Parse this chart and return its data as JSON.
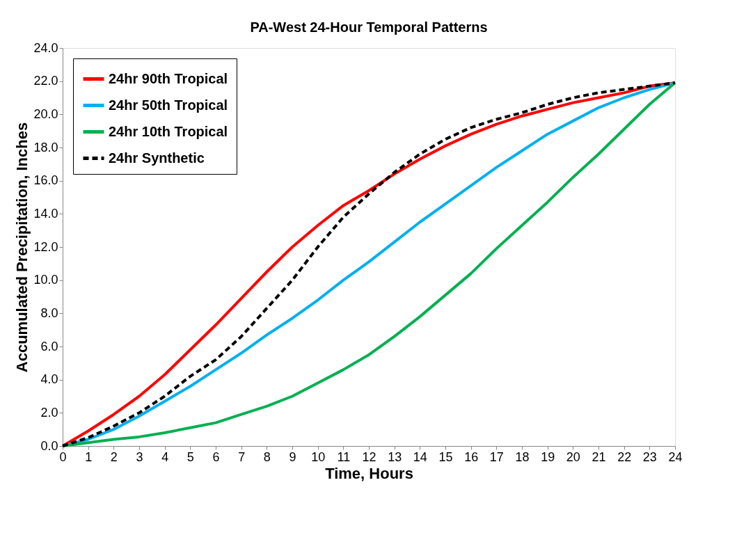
{
  "chart_data": {
    "type": "line",
    "title": "PA-West 24-Hour Temporal Patterns",
    "xlabel": "Time, Hours",
    "ylabel": "Accumulated Precipitation, Inches",
    "x": [
      0,
      1,
      2,
      3,
      4,
      5,
      6,
      7,
      8,
      9,
      10,
      11,
      12,
      13,
      14,
      15,
      16,
      17,
      18,
      19,
      20,
      21,
      22,
      23,
      24
    ],
    "series": [
      {
        "name": "24hr 90th Tropical",
        "color": "#ff0000",
        "line_style": "solid",
        "values": [
          0,
          0.9,
          1.9,
          3.0,
          4.3,
          5.8,
          7.3,
          8.9,
          10.5,
          12.0,
          13.3,
          14.5,
          15.4,
          16.4,
          17.3,
          18.1,
          18.8,
          19.4,
          19.9,
          20.3,
          20.7,
          21.0,
          21.3,
          21.7,
          21.9
        ]
      },
      {
        "name": "24hr 50th Tropical",
        "color": "#00b0f0",
        "line_style": "solid",
        "values": [
          0,
          0.4,
          1.0,
          1.8,
          2.7,
          3.6,
          4.6,
          5.6,
          6.7,
          7.7,
          8.8,
          10.0,
          11.1,
          12.3,
          13.5,
          14.6,
          15.7,
          16.8,
          17.8,
          18.8,
          19.6,
          20.4,
          21.0,
          21.5,
          21.9
        ]
      },
      {
        "name": "24hr 10th Tropical",
        "color": "#00b050",
        "line_style": "solid",
        "values": [
          0,
          0.2,
          0.4,
          0.55,
          0.8,
          1.1,
          1.4,
          1.9,
          2.4,
          3.0,
          3.8,
          4.6,
          5.5,
          6.6,
          7.8,
          9.1,
          10.4,
          11.9,
          13.3,
          14.7,
          16.2,
          17.6,
          19.1,
          20.6,
          21.9
        ]
      },
      {
        "name": "24hr Synthetic",
        "color": "#000000",
        "line_style": "dashed",
        "values": [
          0,
          0.5,
          1.2,
          2.0,
          3.0,
          4.2,
          5.2,
          6.6,
          8.3,
          10.0,
          12.0,
          13.8,
          15.2,
          16.5,
          17.6,
          18.5,
          19.2,
          19.7,
          20.1,
          20.6,
          21.0,
          21.3,
          21.5,
          21.7,
          21.9
        ]
      }
    ],
    "xlim": [
      0,
      24
    ],
    "xticks": [
      0,
      1,
      2,
      3,
      4,
      5,
      6,
      7,
      8,
      9,
      10,
      11,
      12,
      13,
      14,
      15,
      16,
      17,
      18,
      19,
      20,
      21,
      22,
      23,
      24
    ],
    "ylim": [
      0,
      24
    ],
    "yticks": [
      {
        "value": 0,
        "label": "0.0"
      },
      {
        "value": 2,
        "label": "2.0"
      },
      {
        "value": 4,
        "label": "4.0"
      },
      {
        "value": 6,
        "label": "6.0"
      },
      {
        "value": 8,
        "label": "8.0"
      },
      {
        "value": 10,
        "label": "10.0"
      },
      {
        "value": 12,
        "label": "12.0"
      },
      {
        "value": 14,
        "label": "14.0"
      },
      {
        "value": 16,
        "label": "16.0"
      },
      {
        "value": 18,
        "label": "18.0"
      },
      {
        "value": 20,
        "label": "20.0"
      },
      {
        "value": 22,
        "label": "22.0"
      },
      {
        "value": 24,
        "label": "24.0"
      }
    ],
    "grid": false,
    "legend": "top left",
    "marker": "none"
  }
}
